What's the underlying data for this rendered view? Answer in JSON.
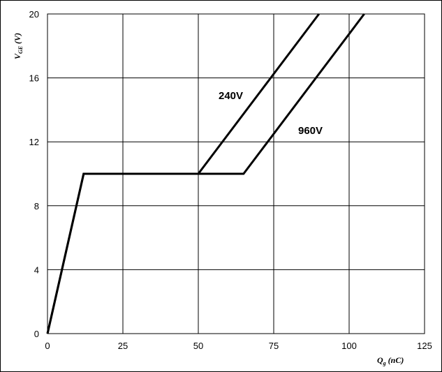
{
  "chart_data": {
    "type": "line",
    "title": "",
    "xlabel": {
      "main": "Q",
      "sub": "g",
      "rest": " (nC)"
    },
    "ylabel": {
      "main": "V",
      "sub": "GE",
      "rest": " (V)"
    },
    "xlim": [
      0,
      125
    ],
    "ylim": [
      0,
      20
    ],
    "xticks": [
      "0",
      "25",
      "50",
      "75",
      "100",
      "125"
    ],
    "yticks": [
      "0",
      "4",
      "8",
      "12",
      "16",
      "20"
    ],
    "grid": true,
    "series": [
      {
        "name": "240V",
        "x": [
          0,
          12,
          50,
          90
        ],
        "y": [
          0,
          10,
          10,
          20
        ]
      },
      {
        "name": "960V",
        "x": [
          0,
          12,
          65,
          105
        ],
        "y": [
          0,
          10,
          10,
          20
        ]
      }
    ]
  }
}
